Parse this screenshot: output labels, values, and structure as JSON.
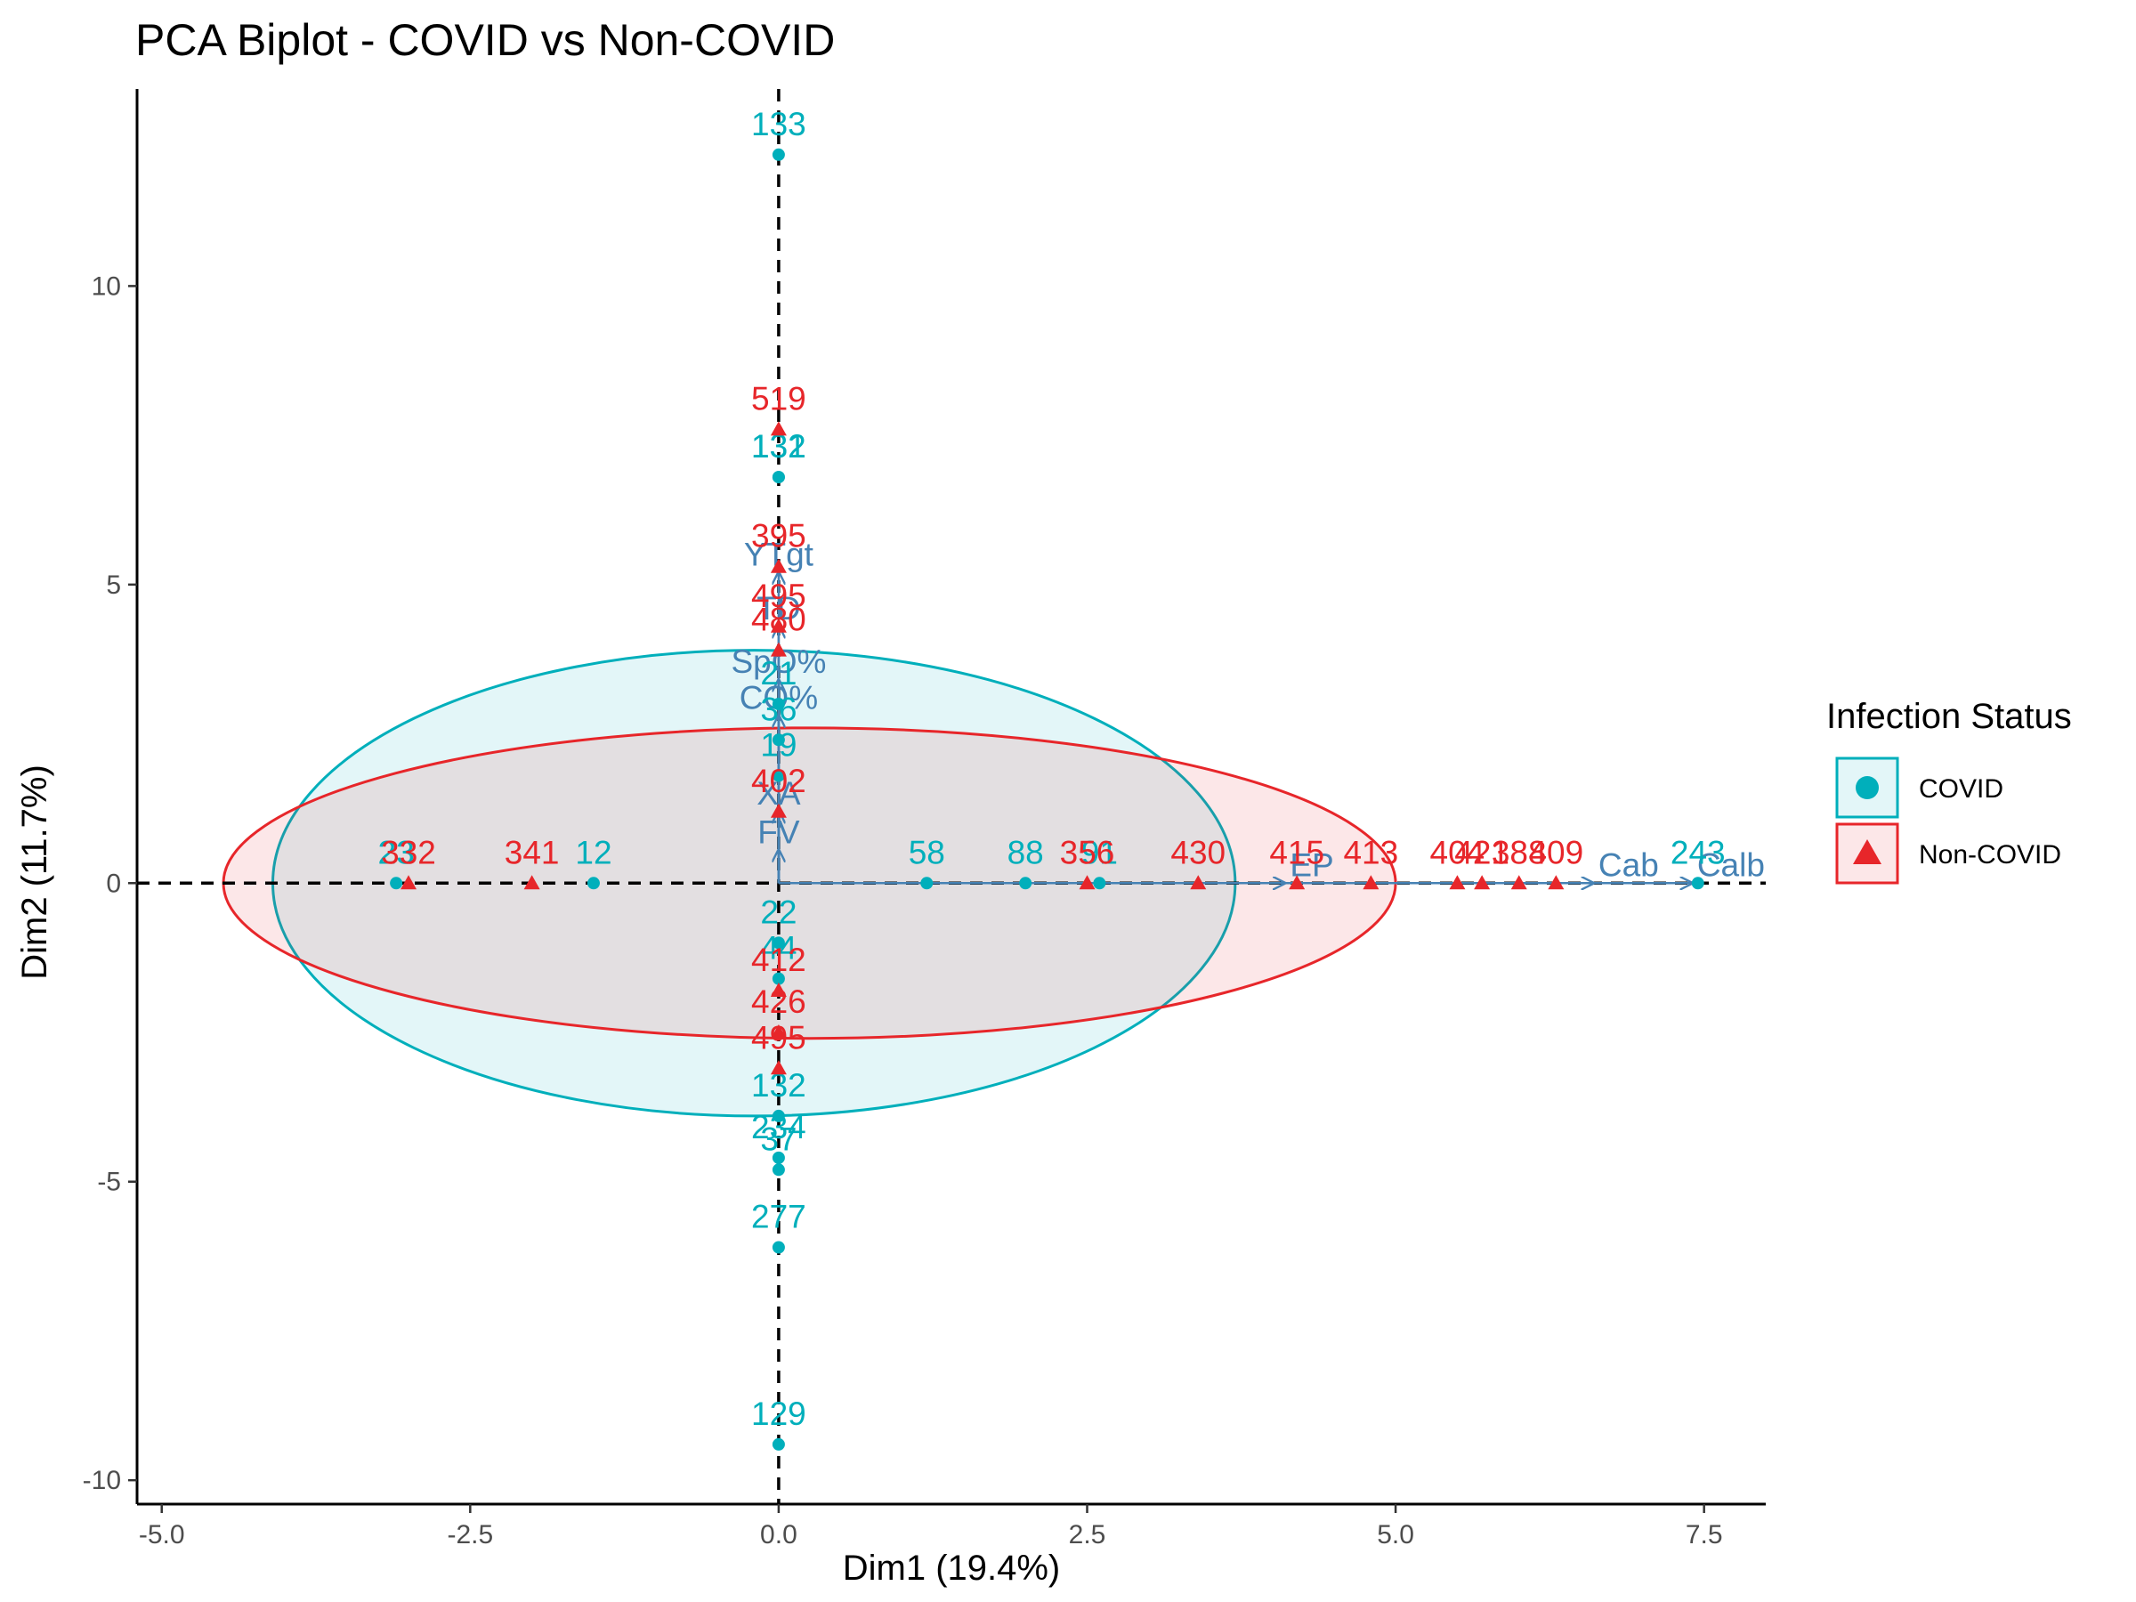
{
  "chart_data": {
    "type": "scatter",
    "title": "PCA Biplot - COVID vs Non-COVID",
    "xlabel": "Dim1 (19.4%)",
    "ylabel": "Dim2 (11.7%)",
    "xlim": [
      -5.2,
      8.0
    ],
    "ylim": [
      -10.4,
      13.3
    ],
    "x_ticks": [
      -5.0,
      -2.5,
      0.0,
      2.5,
      5.0,
      7.5
    ],
    "x_tick_labels": [
      "-5.0",
      "-2.5",
      "0.0",
      "2.5",
      "5.0",
      "7.5"
    ],
    "y_ticks": [
      -10,
      -5,
      0,
      5,
      10
    ],
    "y_tick_labels": [
      "-10",
      "-5",
      "0",
      "5",
      "10"
    ],
    "grid": false,
    "reference_lines": {
      "x": 0,
      "y": 0,
      "style": "dashed",
      "color": "#000000"
    },
    "legend": {
      "title": "Infection Status",
      "position": "right",
      "entries": [
        {
          "label": "COVID",
          "color": "#00AFBB",
          "shape": "circle"
        },
        {
          "label": "Non-COVID",
          "color": "#E7262A",
          "shape": "triangle"
        }
      ]
    },
    "colors": {
      "COVID": "#00AFBB",
      "Non-COVID": "#E7262A",
      "variables": "#4682B4"
    },
    "ellipses": [
      {
        "group": "COVID",
        "center": [
          -0.2,
          0.0
        ],
        "rx": 3.9,
        "ry": 3.9
      },
      {
        "group": "Non-COVID",
        "center": [
          0.25,
          0.0
        ],
        "rx": 4.75,
        "ry": 2.6
      }
    ],
    "series": [
      {
        "name": "COVID",
        "points": [
          {
            "x": 0.0,
            "y": 12.2,
            "label": "133"
          },
          {
            "x": 0.0,
            "y": 6.8,
            "label": "131"
          },
          {
            "x": 0.0,
            "y": 6.8,
            "label": "132"
          },
          {
            "x": 0.0,
            "y": -3.9,
            "label": "132"
          },
          {
            "x": 0.0,
            "y": -4.6,
            "label": "234"
          },
          {
            "x": 0.0,
            "y": -4.8,
            "label": "37"
          },
          {
            "x": 0.0,
            "y": -6.1,
            "label": "277"
          },
          {
            "x": 0.0,
            "y": -9.4,
            "label": "129"
          },
          {
            "x": -3.1,
            "y": 0.0,
            "label": "23"
          },
          {
            "x": 7.45,
            "y": 0.0,
            "label": "243"
          },
          {
            "x": 0.0,
            "y": 3.0,
            "label": "21"
          },
          {
            "x": 0.0,
            "y": 2.4,
            "label": "36"
          },
          {
            "x": 0.0,
            "y": 1.8,
            "label": "19"
          },
          {
            "x": 0.0,
            "y": -1.0,
            "label": "22"
          },
          {
            "x": 0.0,
            "y": -1.6,
            "label": "44"
          },
          {
            "x": -1.5,
            "y": 0.0,
            "label": "12"
          },
          {
            "x": 1.2,
            "y": 0.0,
            "label": "58"
          },
          {
            "x": 2.0,
            "y": 0.0,
            "label": "88"
          },
          {
            "x": 2.6,
            "y": 0.0,
            "label": "91"
          }
        ]
      },
      {
        "name": "Non-COVID",
        "points": [
          {
            "x": 0.0,
            "y": 7.6,
            "label": "519"
          },
          {
            "x": 0.0,
            "y": 5.3,
            "label": "395"
          },
          {
            "x": 0.0,
            "y": 4.3,
            "label": "495"
          },
          {
            "x": 0.0,
            "y": 3.9,
            "label": "480"
          },
          {
            "x": 0.0,
            "y": -3.1,
            "label": "495"
          },
          {
            "x": 0.0,
            "y": -2.5,
            "label": "426"
          },
          {
            "x": -3.0,
            "y": 0.0,
            "label": "332"
          },
          {
            "x": 4.2,
            "y": 0.0,
            "label": "415"
          },
          {
            "x": 4.8,
            "y": 0.0,
            "label": "413"
          },
          {
            "x": 5.5,
            "y": 0.0,
            "label": "404"
          },
          {
            "x": 5.7,
            "y": 0.0,
            "label": "421"
          },
          {
            "x": 6.0,
            "y": 0.0,
            "label": "388"
          },
          {
            "x": 6.3,
            "y": 0.0,
            "label": "409"
          },
          {
            "x": 3.4,
            "y": 0.0,
            "label": "430"
          },
          {
            "x": 2.5,
            "y": 0.0,
            "label": "356"
          },
          {
            "x": -2.0,
            "y": 0.0,
            "label": "341"
          },
          {
            "x": 0.0,
            "y": 1.2,
            "label": "402"
          },
          {
            "x": 0.0,
            "y": -1.8,
            "label": "412"
          }
        ]
      }
    ],
    "variables": [
      {
        "name": "YTgt",
        "x": 0.0,
        "y": 5.2
      },
      {
        "name": "TD",
        "x": 0.0,
        "y": 4.3
      },
      {
        "name": "SpO%",
        "x": 0.0,
        "y": 3.4
      },
      {
        "name": "CO%",
        "x": 0.0,
        "y": 2.8
      },
      {
        "name": "XA",
        "x": 0.0,
        "y": 1.2
      },
      {
        "name": "FV",
        "x": 0.0,
        "y": 0.55
      },
      {
        "name": "EP",
        "x": 4.1,
        "y": 0.0
      },
      {
        "name": "Cab",
        "x": 6.6,
        "y": 0.0
      },
      {
        "name": "Calb",
        "x": 7.4,
        "y": 0.0
      }
    ]
  }
}
